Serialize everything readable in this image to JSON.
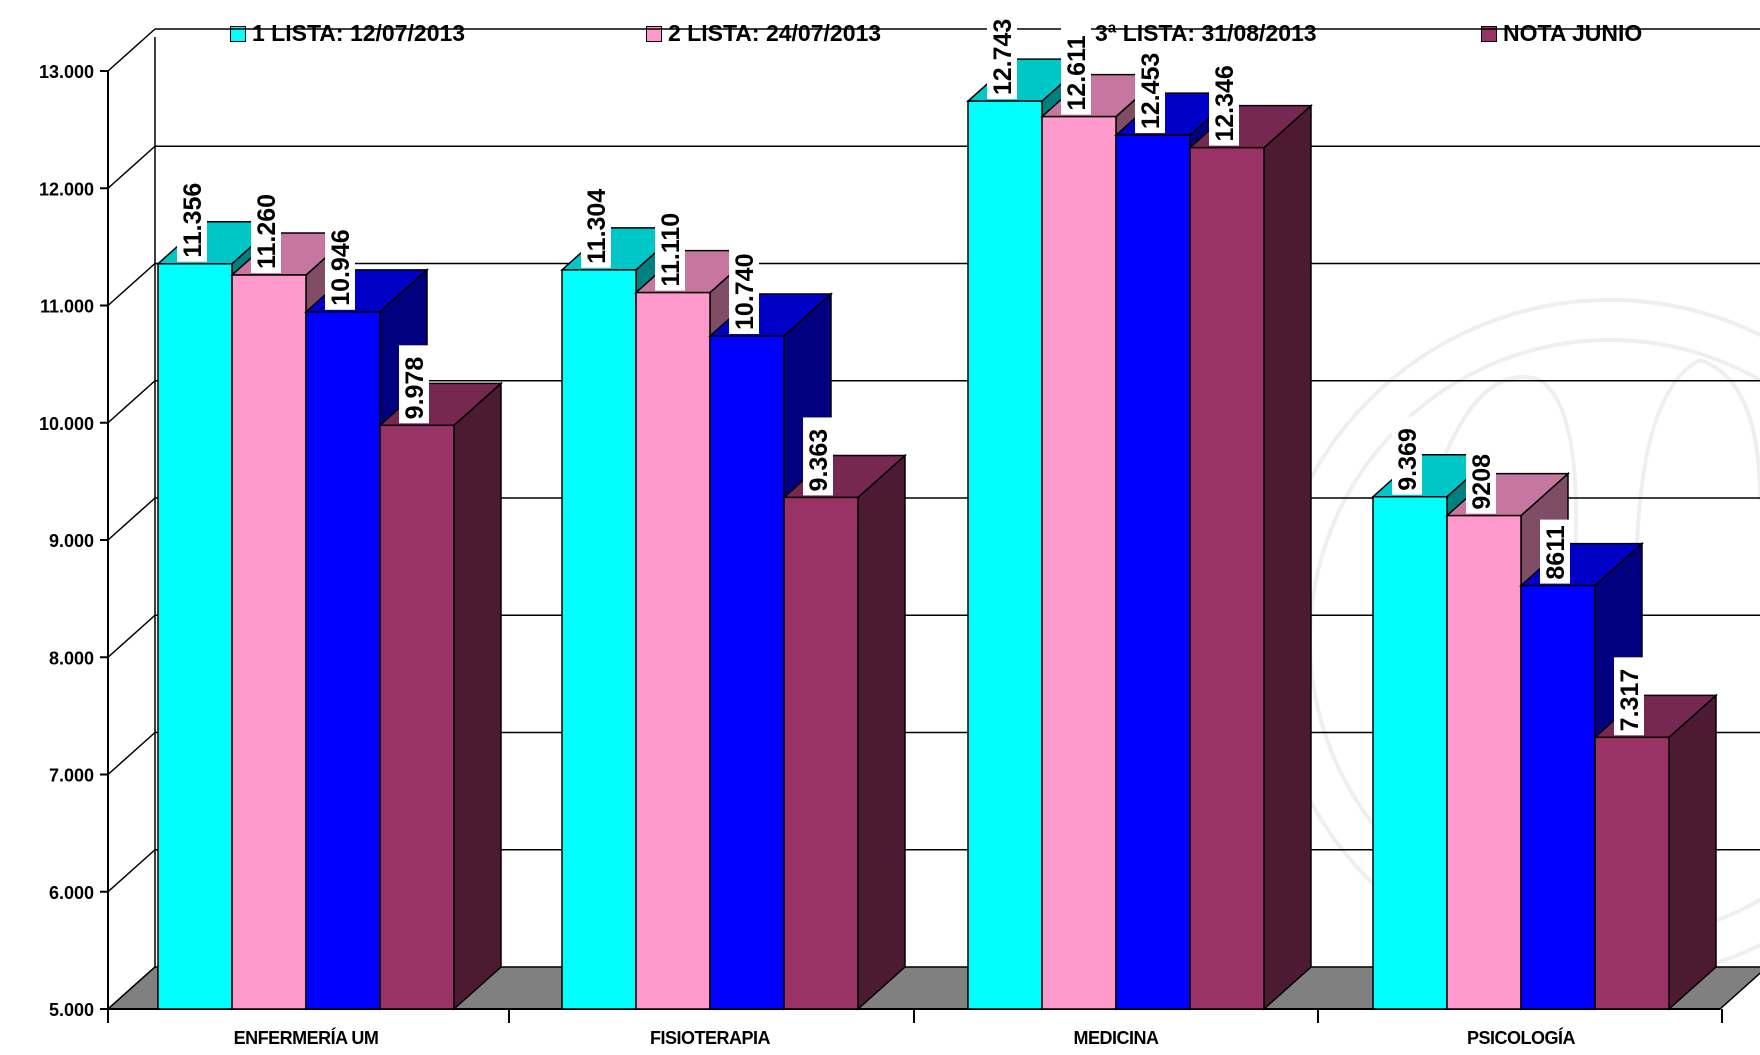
{
  "chart_data": {
    "type": "bar",
    "title": "",
    "xlabel": "",
    "ylabel": "",
    "ylim": [
      5000,
      13000
    ],
    "yticks": [
      "5.000",
      "6.000",
      "7.000",
      "8.000",
      "9.000",
      "10.000",
      "11.000",
      "12.000",
      "13.000"
    ],
    "categories": [
      "ENFERMERÍA UM",
      "FISIOTERAPIA",
      "MEDICINA",
      "PSICOLOGÍA"
    ],
    "series": [
      {
        "name": "1 LISTA: 12/07/2013",
        "color": "#00ffff",
        "values": [
          11356,
          11304,
          12743,
          9369
        ],
        "labels": [
          "11.356",
          "11.304",
          "12.743",
          "9.369"
        ]
      },
      {
        "name": "2 LISTA: 24/07/2013",
        "color": "#ff99cc",
        "values": [
          11260,
          11110,
          12611,
          9208
        ],
        "labels": [
          "11.260",
          "11.110",
          "12.611",
          "9208"
        ]
      },
      {
        "name": "3ª LISTA: 31/08/2013",
        "color": "#0000ff",
        "values": [
          10946,
          10740,
          12453,
          8611
        ],
        "labels": [
          "10.946",
          "10.740",
          "12.453",
          "8611"
        ]
      },
      {
        "name": "NOTA JUNIO",
        "color": "#993366",
        "values": [
          9978,
          9363,
          12346,
          7317
        ],
        "labels": [
          "9.978",
          "9.363",
          "12.346",
          "7.317"
        ]
      }
    ],
    "grid": true,
    "legend_position": "top",
    "three_d": true
  }
}
